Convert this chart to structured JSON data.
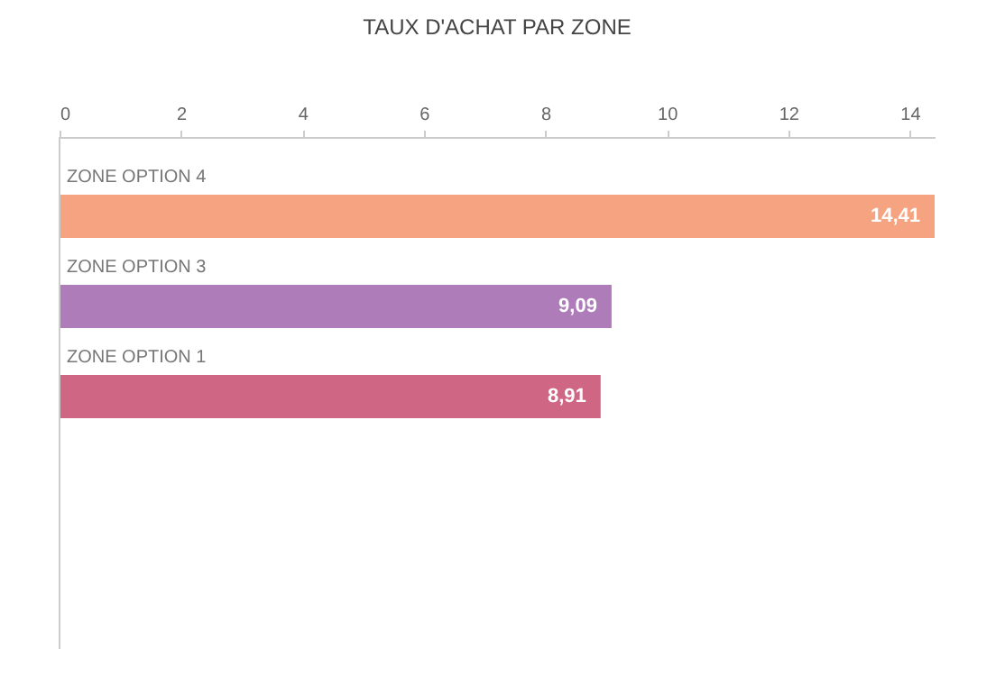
{
  "chart_data": {
    "type": "bar",
    "orientation": "horizontal",
    "title": "TAUX D'ACHAT PAR ZONE",
    "categories": [
      "ZONE OPTION 4",
      "ZONE OPTION 3",
      "ZONE OPTION 1"
    ],
    "values": [
      14.41,
      9.09,
      8.91
    ],
    "colors": [
      "#f6a381",
      "#ad7cb9",
      "#cf6683"
    ],
    "value_labels": [
      "14,41",
      "9,09",
      "8,91"
    ],
    "xlim": [
      0,
      14.41
    ],
    "xticks": [
      0,
      2,
      4,
      6,
      8,
      10,
      12,
      14
    ],
    "grid": false
  }
}
